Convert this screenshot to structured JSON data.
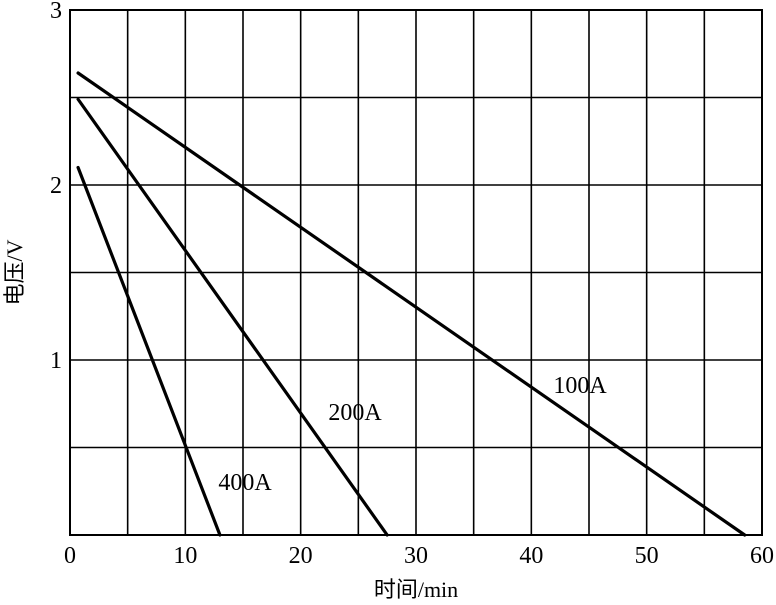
{
  "chart_data": {
    "type": "line",
    "title": "",
    "xlabel": "时间/min",
    "ylabel": "电压/V",
    "xlim": [
      0,
      60
    ],
    "ylim": [
      0,
      3
    ],
    "x_ticks": [
      0,
      10,
      20,
      30,
      40,
      50,
      60
    ],
    "y_ticks": [
      1,
      2,
      3
    ],
    "x_tick_labels": [
      "0",
      "10",
      "20",
      "30",
      "40",
      "50",
      "60"
    ],
    "y_tick_labels": [
      "1",
      "2",
      "3"
    ],
    "x_grid_step": 5,
    "y_grid_step": 0.5,
    "grid": true,
    "legend": "none",
    "series": [
      {
        "name": "100A",
        "x": [
          0.7,
          58.5
        ],
        "y": [
          2.64,
          0
        ]
      },
      {
        "name": "200A",
        "x": [
          0.7,
          27.5
        ],
        "y": [
          2.49,
          0
        ]
      },
      {
        "name": "400A",
        "x": [
          0.7,
          13.0
        ],
        "y": [
          2.1,
          0
        ]
      }
    ]
  }
}
